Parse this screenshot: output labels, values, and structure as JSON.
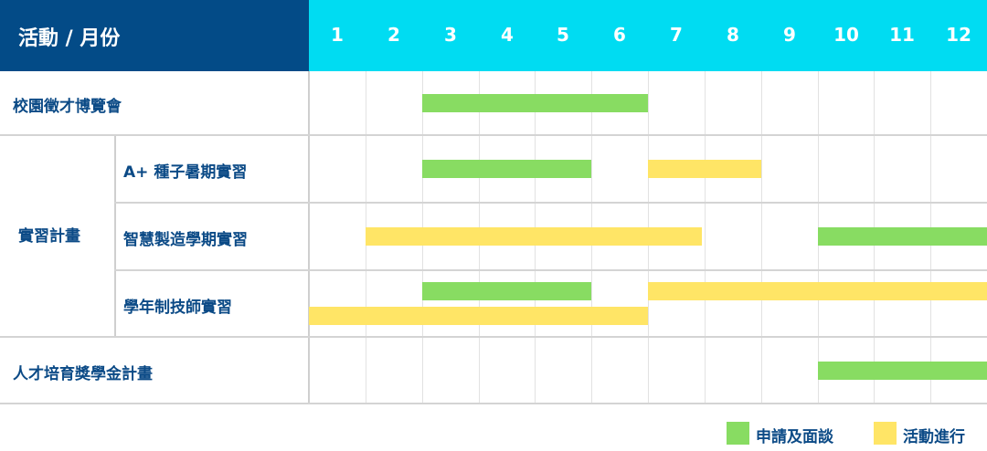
{
  "header": {
    "title": "活動 / 月份",
    "months": [
      "1",
      "2",
      "3",
      "4",
      "5",
      "6",
      "7",
      "8",
      "9",
      "10",
      "11",
      "12"
    ]
  },
  "colors": {
    "header_left": "#034b87",
    "header_right": "#00dcf2",
    "apply": "#88dc62",
    "active": "#ffe566"
  },
  "activities": [
    {
      "label": "校園徵才博覽會",
      "bars": [
        {
          "type": "apply",
          "start": 3,
          "end": 6
        }
      ]
    },
    {
      "group": "實習計畫",
      "label": "A+ 種子暑期實習",
      "bars": [
        {
          "type": "apply",
          "start": 3,
          "end": 5
        },
        {
          "type": "active",
          "start": 7,
          "end": 8
        }
      ]
    },
    {
      "group": "實習計畫",
      "label": "智慧製造學期實習",
      "bars": [
        {
          "type": "apply",
          "start": 10,
          "end": 12
        },
        {
          "type": "active",
          "start": 2,
          "end": 7
        }
      ]
    },
    {
      "group": "實習計畫",
      "label": "學年制技師實習",
      "bars": [
        {
          "type": "apply",
          "start": 3,
          "end": 5
        },
        {
          "type": "active",
          "start": 7,
          "end": 12
        },
        {
          "type": "active",
          "start": 1,
          "end": 6
        }
      ]
    },
    {
      "label": "人才培育獎學金計畫",
      "bars": [
        {
          "type": "apply",
          "start": 10,
          "end": 12
        }
      ]
    }
  ],
  "group_label": "實習計畫",
  "legend": [
    {
      "type": "apply",
      "label": "申請及面談"
    },
    {
      "type": "active",
      "label": "活動進行"
    }
  ]
}
